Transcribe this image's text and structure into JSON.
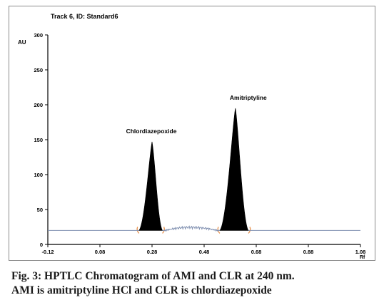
{
  "chart_data": {
    "type": "line",
    "title": "Track 6, ID: Standard6",
    "ylabel": "AU",
    "xlabel": "Rf",
    "xlim": [
      -0.12,
      1.08
    ],
    "ylim": [
      0,
      300
    ],
    "x_ticks": [
      -0.12,
      0.08,
      0.28,
      0.48,
      0.68,
      0.88,
      1.08
    ],
    "x_tick_labels": [
      "-0.12",
      "0.08",
      "0.28",
      "0.48",
      "0.68",
      "0.88",
      "1.08"
    ],
    "y_ticks": [
      0,
      50,
      100,
      150,
      200,
      250,
      300
    ],
    "y_tick_labels": [
      "0",
      "50",
      "100",
      "150",
      "200",
      "250",
      "300"
    ],
    "baseline": 20,
    "peaks": [
      {
        "label": "Chlordiazepoxide",
        "rf": 0.28,
        "height": 147,
        "start": 0.23,
        "end": 0.32
      },
      {
        "label": "Amitriptyline",
        "rf": 0.6,
        "height": 195,
        "start": 0.54,
        "end": 0.65
      }
    ],
    "noise_region": {
      "start": 0.33,
      "end": 0.53,
      "max": 26
    },
    "grid": false,
    "legend": "none"
  },
  "caption": {
    "line1": "Fig. 3: HPTLC Chromatogram of AMI and CLR at 240 nm.",
    "line2": "AMI is amitriptyline HCl and CLR is chlordiazepoxide"
  },
  "colors": {
    "trace": "#7f8fb0",
    "peak_fill": "#000000",
    "marker": "#e8904a",
    "axis": "#000000"
  }
}
